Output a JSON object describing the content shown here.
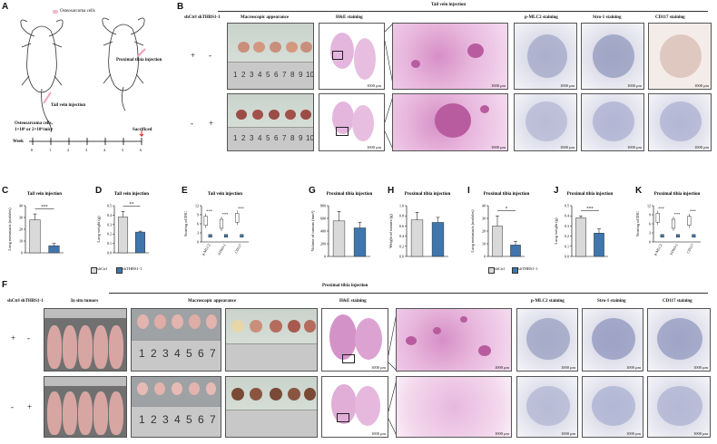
{
  "panel_labels": {
    "A": "A",
    "B": "B",
    "C": "C",
    "D": "D",
    "E": "E",
    "F": "F",
    "G": "G",
    "H": "H",
    "I": "I",
    "J": "J",
    "K": "K"
  },
  "panel_a": {
    "legend": "Osteosarcoma cells",
    "tail_vein": "Tail vein injection",
    "proximal_tibia": "Proximal tibia injection",
    "cells_line1": "Osteosarcoma cells,",
    "cells_line2": "1×10⁶ or 2×10⁶/mice",
    "sacrificed": "Sacrificed",
    "week_label": "Week",
    "weeks": [
      "0",
      "1",
      "2",
      "3",
      "4",
      "5",
      "6"
    ]
  },
  "panel_b": {
    "title": "Tail vein injection",
    "groups": "shCtrl  shTHBS1-1",
    "col_macro": "Macroscopic appearance",
    "col_he": "H&E staining",
    "col_pmlc2": "p-MLC2 staining",
    "col_stro1": "Stro-1 staining",
    "col_cd117": "CD117 staining",
    "row1": [
      "+",
      "-"
    ],
    "row2": [
      "-",
      "+"
    ],
    "scale": "1000 μm",
    "ruler": [
      "1",
      "2",
      "3",
      "4",
      "5",
      "6",
      "7",
      "8",
      "9",
      "10"
    ]
  },
  "panel_f": {
    "title": "Proximal tibia injection",
    "groups": "shCtrl  shTHBS1-1",
    "col_insitu": "In situ tumors",
    "col_macro": "Macroscopic appearance",
    "col_he": "H&E staining",
    "col_pmlc2": "p-MLC2 staining",
    "col_stro1": "Stro-1 staining",
    "col_cd117": "CD117 staining",
    "row1": [
      "+",
      "-"
    ],
    "row2": [
      "-",
      "+"
    ],
    "scale": "1000 μm",
    "ruler": [
      "1",
      "2",
      "3",
      "4",
      "5",
      "6",
      "7"
    ]
  },
  "legend_small": {
    "shctrl": "shCtrl",
    "shthbs1": "shTHBS1-1"
  },
  "colors": {
    "shctrl": "#d9d9d9",
    "shthbs1": "#3f76ad"
  },
  "chart_data": [
    {
      "id": "C",
      "type": "bar",
      "title": "Tail vein injection",
      "ylabel": "Lung metastasis (nodules)",
      "categories": [
        "shCtrl",
        "shTHBS1-1"
      ],
      "values": [
        28,
        6
      ],
      "errors": [
        5,
        2
      ],
      "ylim": [
        0,
        40
      ],
      "yticks": [
        "0",
        "10",
        "20",
        "30",
        "40"
      ],
      "significance": "***"
    },
    {
      "id": "D",
      "type": "bar",
      "title": "Tail vein injection",
      "ylabel": "Lung weight (g)",
      "categories": [
        "shCtrl",
        "shTHBS1-1"
      ],
      "values": [
        0.38,
        0.22
      ],
      "errors": [
        0.06,
        0.01
      ],
      "ylim": [
        0,
        0.5
      ],
      "yticks": [
        "0.0",
        "0.1",
        "0.2",
        "0.3",
        "0.4",
        "0.5"
      ],
      "significance": "**"
    },
    {
      "id": "E",
      "type": "box",
      "title": "Tail vein injection",
      "ylabel": "Scoring of IHC",
      "categories": [
        "p-MLC2",
        "STRO-1",
        "CD117"
      ],
      "series": [
        {
          "name": "shCtrl",
          "values": [
            7,
            6,
            8
          ]
        },
        {
          "name": "shTHBS1-1",
          "values": [
            2,
            2,
            2
          ]
        }
      ],
      "ylim": [
        0,
        12
      ],
      "yticks": [
        "0",
        "3",
        "6",
        "9",
        "12"
      ],
      "significance": [
        "***",
        "***",
        "***"
      ]
    },
    {
      "id": "G",
      "type": "bar",
      "title": "Proximal tibia injection",
      "ylabel": "Volume of tumors (mm³)",
      "categories": [
        "shCtrl",
        "shTHBS1-1"
      ],
      "values": [
        560,
        450
      ],
      "errors": [
        150,
        90
      ],
      "ylim": [
        0,
        800
      ],
      "yticks": [
        "0",
        "200",
        "400",
        "600",
        "800"
      ]
    },
    {
      "id": "H",
      "type": "bar",
      "title": "Proximal tibia injection",
      "ylabel": "Weight of tumors (g)",
      "categories": [
        "shCtrl",
        "shTHBS1-1"
      ],
      "values": [
        0.72,
        0.67
      ],
      "errors": [
        0.15,
        0.1
      ],
      "ylim": [
        0,
        1.0
      ],
      "yticks": [
        "0.0",
        "0.2",
        "0.4",
        "0.6",
        "0.8",
        "1.0"
      ]
    },
    {
      "id": "I",
      "type": "bar",
      "title": "Proximal tibia injection",
      "ylabel": "Lung metastasis (nodules)",
      "categories": [
        "shCtrl",
        "shTHBS1-1"
      ],
      "values": [
        24,
        9
      ],
      "errors": [
        8,
        3
      ],
      "ylim": [
        0,
        40
      ],
      "yticks": [
        "0",
        "10",
        "20",
        "30",
        "40"
      ],
      "significance": "*"
    },
    {
      "id": "J",
      "type": "bar",
      "title": "Proximal tibia injection",
      "ylabel": "Lung weight (g)",
      "categories": [
        "shCtrl",
        "shTHBS1-1"
      ],
      "values": [
        0.38,
        0.23
      ],
      "errors": [
        0.02,
        0.04
      ],
      "ylim": [
        0,
        0.5
      ],
      "yticks": [
        "0.0",
        "0.1",
        "0.2",
        "0.3",
        "0.4",
        "0.5"
      ],
      "significance": "***"
    },
    {
      "id": "K",
      "type": "box",
      "title": "Proximal tibia injection",
      "ylabel": "Scoring of IHC",
      "categories": [
        "p-MLC2",
        "STRO-1",
        "CD117"
      ],
      "series": [
        {
          "name": "shCtrl",
          "values": [
            8,
            6,
            7
          ]
        },
        {
          "name": "shTHBS1-1",
          "values": [
            2,
            2,
            2
          ]
        }
      ],
      "ylim": [
        0,
        12
      ],
      "yticks": [
        "0",
        "3",
        "6",
        "9",
        "12"
      ],
      "significance": [
        "***",
        "***",
        "***"
      ]
    }
  ]
}
